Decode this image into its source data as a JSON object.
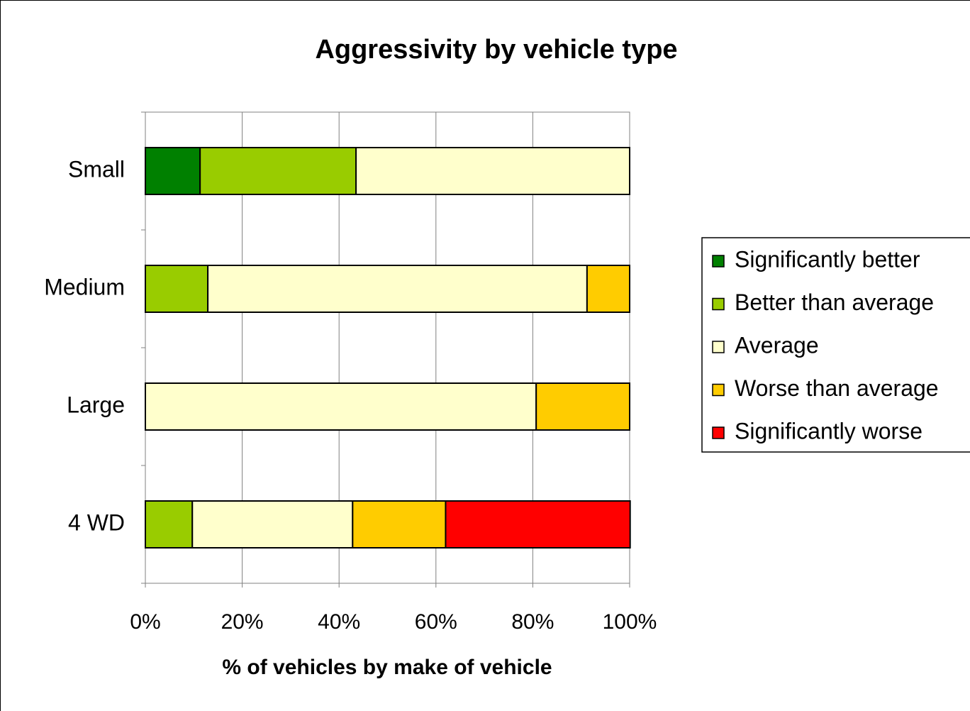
{
  "chart_data": {
    "type": "stacked-bar-horizontal",
    "title": "Aggressivity by vehicle type",
    "x_label": "% of vehicles by make of vehicle",
    "categories": [
      "Small",
      "Medium",
      "Large",
      "4 WD"
    ],
    "series": [
      {
        "name": "Significantly better",
        "color": "#008000",
        "values": [
          11.3,
          0,
          0,
          0
        ]
      },
      {
        "name": "Better than average",
        "color": "#99cc00",
        "values": [
          32.2,
          12.9,
          0,
          9.7
        ]
      },
      {
        "name": "Average",
        "color": "#ffffcc",
        "values": [
          56.5,
          78.3,
          80.7,
          33.1
        ]
      },
      {
        "name": "Worse than average",
        "color": "#ffcc00",
        "values": [
          0,
          8.8,
          19.3,
          19.2
        ]
      },
      {
        "name": "Significantly worse",
        "color": "#ff0000",
        "values": [
          0,
          0,
          0,
          38.1
        ]
      }
    ],
    "xlim": [
      0,
      100
    ],
    "xticks": [
      {
        "value": 0,
        "label": "0%"
      },
      {
        "value": 20,
        "label": "20%"
      },
      {
        "value": 40,
        "label": "40%"
      },
      {
        "value": 60,
        "label": "60%"
      },
      {
        "value": 80,
        "label": "80%"
      },
      {
        "value": 100,
        "label": "100%"
      }
    ],
    "grid": true,
    "legend": "right"
  }
}
